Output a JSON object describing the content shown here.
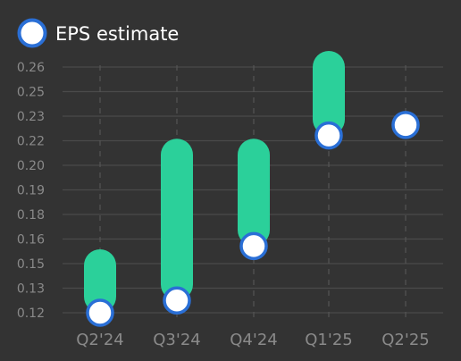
{
  "chart_data": {
    "type": "range-bar",
    "legend": {
      "label": "EPS estimate",
      "marker": "white-circle-with-blue-ring",
      "position": "top-left"
    },
    "categories": [
      "Q2'24",
      "Q3'24",
      "Q4'24",
      "Q1'25",
      "Q2'25"
    ],
    "y_ticks": [
      "0.12",
      "0.13",
      "0.15",
      "0.16",
      "0.18",
      "0.19",
      "0.20",
      "0.22",
      "0.23",
      "0.25",
      "0.26"
    ],
    "ylim": [
      0.12,
      0.26
    ],
    "ranges": [
      {
        "low": 0.12,
        "high": 0.147
      },
      {
        "low": 0.127,
        "high": 0.21
      },
      {
        "low": 0.158,
        "high": 0.21
      },
      {
        "low": 0.221,
        "high": 0.26
      },
      null
    ],
    "series": [
      {
        "name": "EPS estimate",
        "values": [
          0.12,
          0.127,
          0.158,
          0.221,
          0.227
        ]
      }
    ],
    "grid": true,
    "colors": {
      "background": "#333333",
      "range_bar": "#2bd09a",
      "marker_fill": "#ffffff",
      "marker_ring": "#2a6fd6",
      "grid": "#4a4a4a",
      "vgrid": "#555555",
      "tick_text": "#8a8a8a",
      "legend_text": "#ffffff"
    }
  }
}
